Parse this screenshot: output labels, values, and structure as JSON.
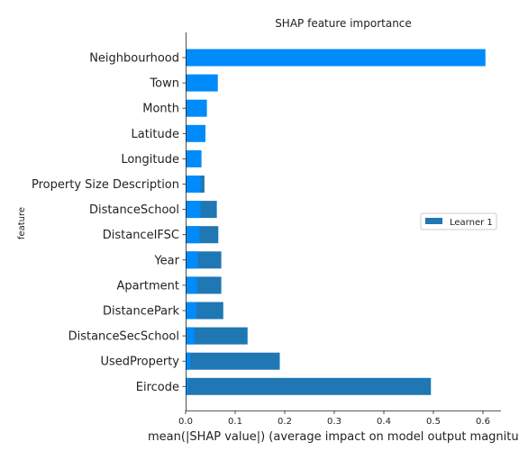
{
  "chart_data": {
    "type": "bar",
    "orientation": "horizontal",
    "title": "SHAP feature importance",
    "xlabel": "mean(|SHAP value|) (average impact on model output magnitude)",
    "ylabel": "feature",
    "xlim": [
      0,
      0.63
    ],
    "xticks": [
      "0.0",
      "0.1",
      "0.2",
      "0.3",
      "0.4",
      "0.5",
      "0.6"
    ],
    "grid": false,
    "legend_position": "right",
    "categories": [
      "Neighbourhood",
      "Town",
      "Month",
      "Latitude",
      "Longitude",
      "Property Size Description",
      "DistanceSchool",
      "DistanceIFSC",
      "Year",
      "Apartment",
      "DistancePark",
      "DistanceSecSchool",
      "UsedProperty",
      "Eircode"
    ],
    "series": [
      {
        "name": "Learner 1",
        "color": "#1f77b4",
        "values": [
          0.0,
          0.0,
          0.0,
          0.0,
          0.0,
          0.038,
          0.063,
          0.066,
          0.072,
          0.072,
          0.076,
          0.125,
          0.19,
          0.495
        ]
      },
      {
        "color": "#008bfb",
        "values": [
          0.605,
          0.065,
          0.043,
          0.04,
          0.032,
          0.03,
          0.03,
          0.028,
          0.025,
          0.023,
          0.022,
          0.018,
          0.009,
          0.005
        ]
      }
    ]
  }
}
